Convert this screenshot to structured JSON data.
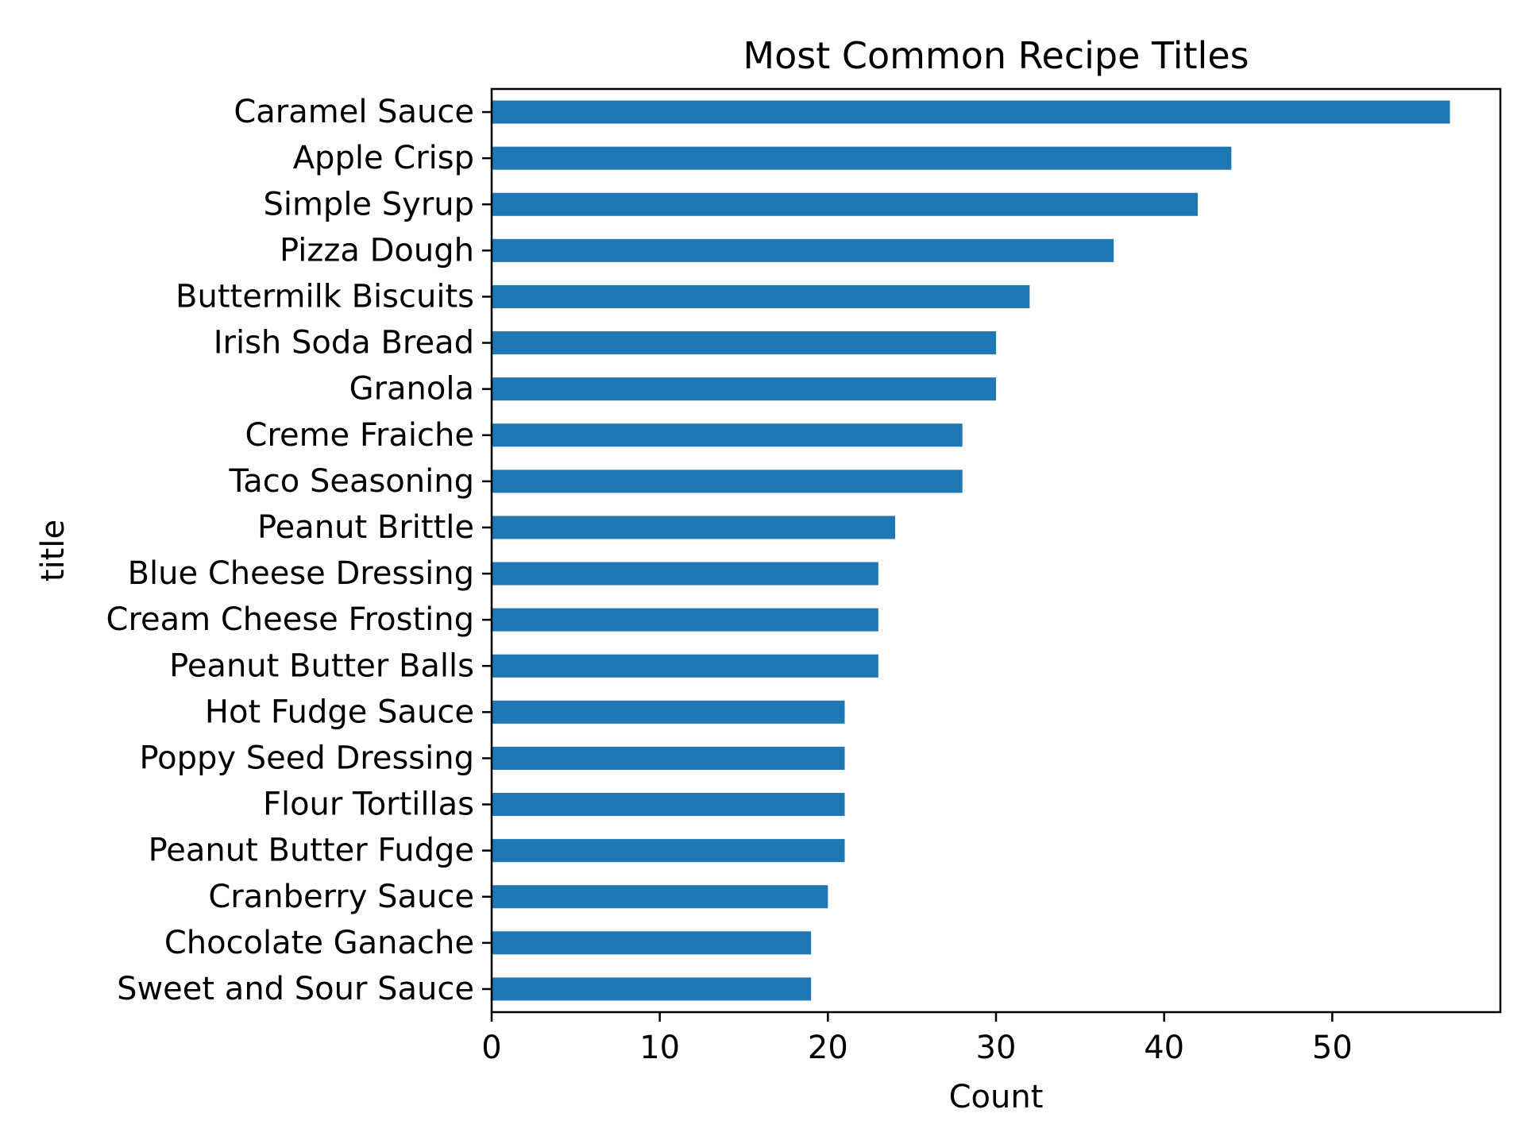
{
  "chart_data": {
    "type": "bar",
    "orientation": "horizontal",
    "title": "Most Common Recipe Titles",
    "xlabel": "Count",
    "ylabel": "title",
    "xlim": [
      0,
      60
    ],
    "xticks": [
      0,
      10,
      20,
      30,
      40,
      50
    ],
    "grid": false,
    "bar_color": "#1f77b4",
    "categories": [
      "Caramel Sauce",
      "Apple Crisp",
      "Simple Syrup",
      "Pizza Dough",
      "Buttermilk Biscuits",
      "Irish Soda Bread",
      "Granola",
      "Creme Fraiche",
      "Taco Seasoning",
      "Peanut Brittle",
      "Blue Cheese Dressing",
      "Cream Cheese Frosting",
      "Peanut Butter Balls",
      "Hot Fudge Sauce",
      "Poppy Seed Dressing",
      "Flour Tortillas",
      "Peanut Butter Fudge",
      "Cranberry Sauce",
      "Chocolate Ganache",
      "Sweet and Sour Sauce"
    ],
    "values": [
      57,
      44,
      42,
      37,
      32,
      30,
      30,
      28,
      28,
      24,
      23,
      23,
      23,
      21,
      21,
      21,
      21,
      20,
      19,
      19
    ]
  }
}
